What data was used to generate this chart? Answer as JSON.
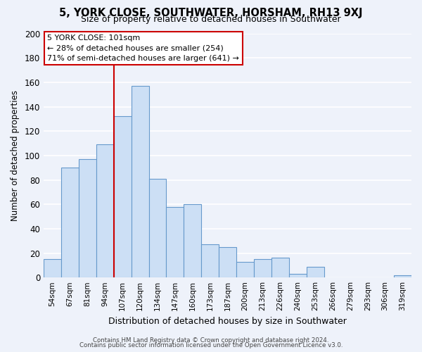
{
  "title_line1": "5, YORK CLOSE, SOUTHWATER, HORSHAM, RH13 9XJ",
  "title_line2": "Size of property relative to detached houses in Southwater",
  "xlabel": "Distribution of detached houses by size in Southwater",
  "ylabel": "Number of detached properties",
  "bar_labels": [
    "54sqm",
    "67sqm",
    "81sqm",
    "94sqm",
    "107sqm",
    "120sqm",
    "134sqm",
    "147sqm",
    "160sqm",
    "173sqm",
    "187sqm",
    "200sqm",
    "213sqm",
    "226sqm",
    "240sqm",
    "253sqm",
    "266sqm",
    "279sqm",
    "293sqm",
    "306sqm",
    "319sqm"
  ],
  "bar_values": [
    15,
    90,
    97,
    109,
    132,
    157,
    81,
    58,
    60,
    27,
    25,
    13,
    15,
    16,
    3,
    9,
    0,
    0,
    0,
    0,
    2
  ],
  "bar_color": "#ccdff5",
  "bar_edge_color": "#6699cc",
  "vline_color": "#cc0000",
  "annotation_title": "5 YORK CLOSE: 101sqm",
  "annotation_line1": "← 28% of detached houses are smaller (254)",
  "annotation_line2": "71% of semi-detached houses are larger (641) →",
  "annotation_box_color": "#ffffff",
  "annotation_box_edge": "#cc0000",
  "ylim": [
    0,
    200
  ],
  "yticks": [
    0,
    20,
    40,
    60,
    80,
    100,
    120,
    140,
    160,
    180,
    200
  ],
  "footer_line1": "Contains HM Land Registry data © Crown copyright and database right 2024.",
  "footer_line2": "Contains public sector information licensed under the Open Government Licence v3.0.",
  "background_color": "#eef2fa",
  "grid_color": "#ffffff"
}
